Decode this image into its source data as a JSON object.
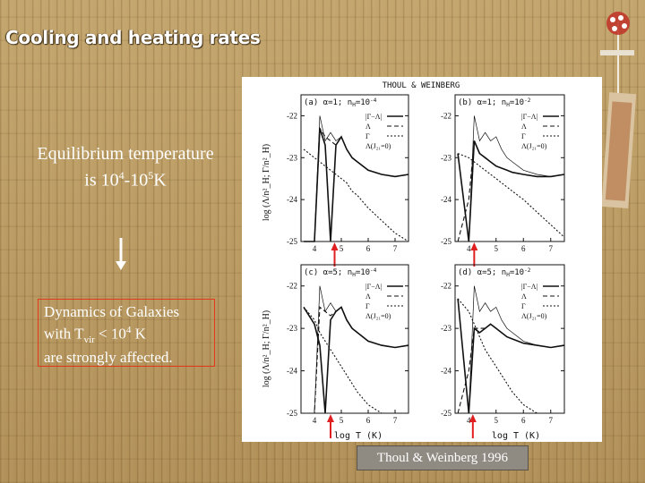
{
  "slide": {
    "title": "Cooling and heating rates",
    "equilibrium_line1": "Equilibrium temperature",
    "equilibrium_line2_prefix": "is 10",
    "equilibrium_exp1": "4",
    "equilibrium_mid": "-10",
    "equilibrium_exp2": "5",
    "equilibrium_suffix": "K",
    "dynamics_line1": "Dynamics of Galaxies",
    "dynamics_line2_prefix": "with T",
    "dynamics_sub": "vir",
    "dynamics_line2_mid": " < 10",
    "dynamics_exp": "4",
    "dynamics_line2_suffix": " K",
    "dynamics_line3": "are strongly affected.",
    "credit": "Thoul & Weinberg 1996",
    "colors": {
      "box_border": "#e23a1a",
      "arrow": "#e02020",
      "text": "#ffffff"
    }
  },
  "figure": {
    "header": "THOUL & WEINBERG",
    "panels": [
      {
        "label": "(a)  α=1;  n",
        "label_sub": "H",
        "label_eq": "=10",
        "label_exp": "-4",
        "legend_last": "Λ(J₂₁=0)"
      },
      {
        "label": "(b)  α=1;  n",
        "label_sub": "H",
        "label_eq": "=10",
        "label_exp": "-2",
        "legend_last": "Λ(J₂₁=0)"
      },
      {
        "label": "(c)  α=5;  n",
        "label_sub": "H",
        "label_eq": "=10",
        "label_exp": "-4",
        "legend_last": "Λ(J₂₁=0)"
      },
      {
        "label": "(d)  α=5;  n",
        "label_sub": "H",
        "label_eq": "=10",
        "label_exp": "-2",
        "legend_last": "Λ(J₂₁=0)"
      }
    ],
    "legend": [
      "|Γ−Λ|",
      "Λ",
      "Γ"
    ],
    "y_ticks": [
      "-22",
      "-23",
      "-24",
      "-25"
    ],
    "x_ticks": [
      "4",
      "5",
      "6",
      "7"
    ],
    "ylabel": "log (Λ/n²_H; Γ/n²_H)",
    "xlabel": "log T (K)",
    "chart_data": {
      "type": "line",
      "xlabel": "log T (K)",
      "ylabel": "log (Λ/n²_H; Γ/n²_H)",
      "xlim": [
        3.5,
        7.5
      ],
      "ylim": [
        -25,
        -21.5
      ],
      "x": [
        3.6,
        4.0,
        4.2,
        4.4,
        4.6,
        4.8,
        5.0,
        5.2,
        5.4,
        5.6,
        6.0,
        6.5,
        7.0,
        7.5
      ],
      "panels": [
        {
          "series": [
            {
              "name": "|Γ−Λ|",
              "values": [
                -25,
                -25,
                -22.3,
                -22.7,
                -25,
                -22.7,
                -22.5,
                -22.8,
                -23.0,
                -23.1,
                -23.3,
                -23.4,
                -23.45,
                -23.4
              ]
            },
            {
              "name": "Λ",
              "values": [
                -25,
                -25,
                -22.3,
                -22.5,
                -22.6,
                -22.7,
                -22.5,
                -22.8,
                -23.0,
                -23.1,
                -23.3,
                -23.4,
                -23.45,
                -23.4
              ]
            },
            {
              "name": "Γ",
              "values": [
                -22.8,
                -23.0,
                -23.1,
                -23.2,
                -23.3,
                -23.4,
                -23.5,
                -23.6,
                -23.8,
                -23.9,
                -24.2,
                -24.5,
                -24.8,
                -25
              ]
            },
            {
              "name": "Λ(J₂₁=0)",
              "values": [
                -25,
                -25,
                -22.0,
                -22.6,
                -22.4,
                -22.6,
                -22.5,
                -22.8,
                -23.0,
                -23.1,
                -23.3,
                -23.4,
                -23.45,
                -23.4
              ]
            }
          ]
        },
        {
          "series": [
            {
              "name": "|Γ−Λ|",
              "values": [
                -22.9,
                -25,
                -22.6,
                -22.9,
                -23.0,
                -23.1,
                -23.2,
                -23.25,
                -23.3,
                -23.35,
                -23.4,
                -23.45,
                -23.45,
                -23.4
              ]
            },
            {
              "name": "Λ",
              "values": [
                -25,
                -24.0,
                -22.6,
                -22.9,
                -23.0,
                -23.1,
                -23.2,
                -23.25,
                -23.3,
                -23.35,
                -23.4,
                -23.45,
                -23.45,
                -23.4
              ]
            },
            {
              "name": "Γ",
              "values": [
                -22.9,
                -23.0,
                -23.1,
                -23.2,
                -23.3,
                -23.4,
                -23.5,
                -23.6,
                -23.7,
                -23.8,
                -24.0,
                -24.3,
                -24.6,
                -24.9
              ]
            },
            {
              "name": "Λ(J₂₁=0)",
              "values": [
                -25,
                -25,
                -22.0,
                -22.6,
                -22.4,
                -22.6,
                -22.5,
                -22.8,
                -23.0,
                -23.1,
                -23.3,
                -23.4,
                -23.45,
                -23.4
              ]
            }
          ]
        },
        {
          "series": [
            {
              "name": "|Γ−Λ|",
              "values": [
                -22.5,
                -22.9,
                -23.4,
                -25,
                -22.8,
                -22.6,
                -22.5,
                -22.8,
                -23.0,
                -23.1,
                -23.3,
                -23.4,
                -23.45,
                -23.4
              ]
            },
            {
              "name": "Λ",
              "values": [
                -25,
                -25,
                -22.5,
                -22.6,
                -22.7,
                -22.6,
                -22.5,
                -22.8,
                -23.0,
                -23.1,
                -23.3,
                -23.4,
                -23.45,
                -23.4
              ]
            },
            {
              "name": "Γ",
              "values": [
                -22.5,
                -22.8,
                -23.1,
                -23.3,
                -23.5,
                -23.7,
                -23.9,
                -24.1,
                -24.3,
                -24.5,
                -24.8,
                -25,
                -25,
                -25
              ]
            },
            {
              "name": "Λ(J₂₁=0)",
              "values": [
                -25,
                -25,
                -22.0,
                -22.6,
                -22.4,
                -22.6,
                -22.5,
                -22.8,
                -23.0,
                -23.1,
                -23.3,
                -23.4,
                -23.45,
                -23.4
              ]
            }
          ]
        },
        {
          "series": [
            {
              "name": "|Γ−Λ|",
              "values": [
                -22.3,
                -25,
                -23.0,
                -23.1,
                -23.0,
                -22.9,
                -23.0,
                -23.1,
                -23.2,
                -23.25,
                -23.35,
                -23.4,
                -23.45,
                -23.4
              ]
            },
            {
              "name": "Λ",
              "values": [
                -25,
                -24.0,
                -23.0,
                -23.0,
                -23.0,
                -22.9,
                -23.0,
                -23.1,
                -23.2,
                -23.25,
                -23.35,
                -23.4,
                -23.45,
                -23.4
              ]
            },
            {
              "name": "Γ",
              "values": [
                -22.3,
                -22.6,
                -22.9,
                -23.2,
                -23.5,
                -23.7,
                -23.9,
                -24.1,
                -24.3,
                -24.5,
                -24.8,
                -25,
                -25,
                -25
              ]
            },
            {
              "name": "Λ(J₂₁=0)",
              "values": [
                -25,
                -25,
                -22.0,
                -22.6,
                -22.4,
                -22.6,
                -22.5,
                -22.8,
                -23.0,
                -23.1,
                -23.3,
                -23.4,
                -23.45,
                -23.4
              ]
            }
          ]
        }
      ],
      "equilibrium_markers_logT": [
        4.75,
        4.2,
        4.6,
        4.15
      ]
    }
  }
}
